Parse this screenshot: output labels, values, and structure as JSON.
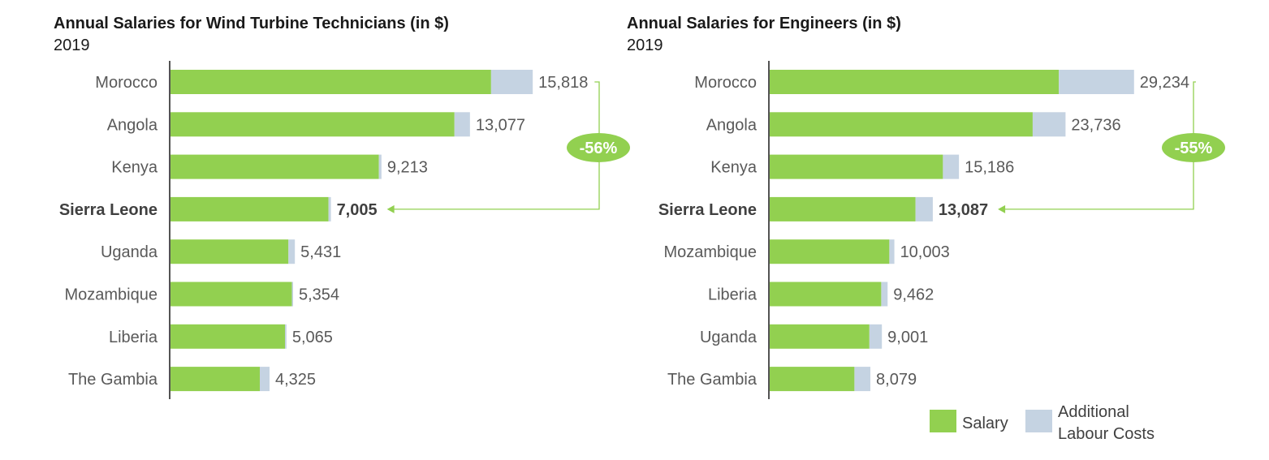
{
  "colors": {
    "salary": "#92d050",
    "additional": "#c5d3e2",
    "axis": "#1a1a1a",
    "connector": "#92d050"
  },
  "chart_data": [
    {
      "type": "bar",
      "orientation": "horizontal",
      "stacked": true,
      "title": "Annual Salaries for Wind Turbine Technicians (in $)",
      "subtitle": "2019",
      "categories": [
        "Morocco",
        "Angola",
        "Kenya",
        "Sierra Leone",
        "Uganda",
        "Mozambique",
        "Liberia",
        "The Gambia"
      ],
      "highlight": "Sierra Leone",
      "series": [
        {
          "name": "Salary",
          "values": [
            14000,
            12400,
            9100,
            6900,
            5150,
            5300,
            5000,
            3900
          ]
        },
        {
          "name": "Additional Labour Costs",
          "values": [
            1818,
            677,
            113,
            105,
            281,
            54,
            65,
            425
          ]
        }
      ],
      "totals": [
        15818,
        13077,
        9213,
        7005,
        5431,
        5354,
        5065,
        4325
      ],
      "total_labels": [
        "15,818",
        "13,077",
        "9,213",
        "7,005",
        "5,431",
        "5,354",
        "5,065",
        "4,325"
      ],
      "xlim": [
        0,
        19500
      ],
      "annotation": {
        "label": "-56%",
        "from": "Morocco",
        "to": "Sierra Leone"
      }
    },
    {
      "type": "bar",
      "orientation": "horizontal",
      "stacked": true,
      "title": "Annual Salaries for Engineers (in $)",
      "subtitle": "2019",
      "categories": [
        "Morocco",
        "Angola",
        "Kenya",
        "Sierra Leone",
        "Mozambique",
        "Liberia",
        "Uganda",
        "The Gambia"
      ],
      "highlight": "Sierra Leone",
      "series": [
        {
          "name": "Salary",
          "values": [
            23200,
            21100,
            13900,
            11700,
            9600,
            8950,
            8000,
            6800
          ]
        },
        {
          "name": "Additional Labour Costs",
          "values": [
            6034,
            2636,
            1286,
            1387,
            403,
            512,
            1001,
            1279
          ]
        }
      ],
      "totals": [
        29234,
        23736,
        15186,
        13087,
        10003,
        9462,
        9001,
        8079
      ],
      "total_labels": [
        "29,234",
        "23,736",
        "15,186",
        "13,087",
        "10,003",
        "9,462",
        "9,001",
        "8,079"
      ],
      "xlim": [
        0,
        35500
      ],
      "annotation": {
        "label": "-55%",
        "from": "Morocco",
        "to": "Sierra Leone"
      }
    }
  ],
  "legend": {
    "salary_label": "Salary",
    "additional_label_line1": "Additional",
    "additional_label_line2": "Labour Costs"
  }
}
